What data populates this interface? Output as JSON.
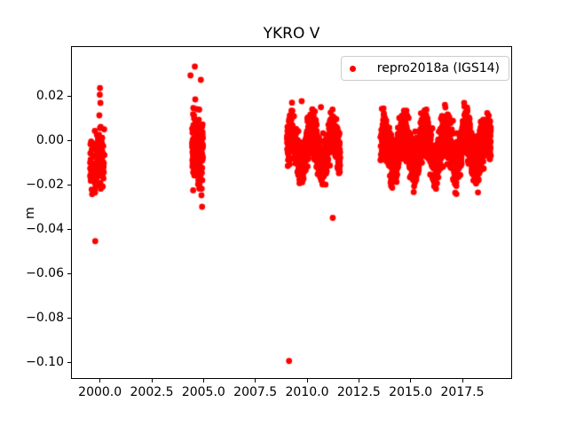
{
  "figure": {
    "background": "#ffffff"
  },
  "chart_data": {
    "type": "scatter",
    "title": "YKRO V",
    "xlabel": "",
    "ylabel": "m",
    "grid": false,
    "xlim": [
      1998.6,
      2019.9
    ],
    "ylim": [
      -0.1076,
      0.0424
    ],
    "xticks": [
      2000.0,
      2002.5,
      2005.0,
      2007.5,
      2010.0,
      2012.5,
      2015.0,
      2017.5
    ],
    "xtick_labels": [
      "2000.0",
      "2002.5",
      "2005.0",
      "2007.5",
      "2010.0",
      "2012.5",
      "2015.0",
      "2017.5"
    ],
    "yticks": [
      0.02,
      0.0,
      -0.02,
      -0.04,
      -0.06,
      -0.08,
      -0.1
    ],
    "ytick_labels": [
      "0.02",
      "0.00",
      "−0.02",
      "−0.04",
      "−0.06",
      "−0.08",
      "−0.10"
    ],
    "legend": {
      "position": "upper-right",
      "entries": [
        {
          "label": "repro2018a (IGS14)",
          "color": "#ff0000",
          "marker": "circle"
        }
      ]
    },
    "series_color": "#ff0000",
    "marker_radius_px": 3.4,
    "data_segments": [
      {
        "name": "cluster-1999-2000",
        "x_start": 1999.52,
        "x_end": 2000.22,
        "n": 120,
        "mean": -0.011,
        "annual_amplitude": 0.002,
        "annual_phase": 0.25,
        "sigma": 0.008,
        "y_min": -0.028,
        "y_max": 0.006
      },
      {
        "name": "cluster-2004",
        "x_start": 2004.45,
        "x_end": 2004.97,
        "n": 160,
        "mean": -0.004,
        "annual_amplitude": 0.002,
        "annual_phase": 0.25,
        "sigma": 0.009,
        "y_min": -0.0238,
        "y_max": 0.0153
      },
      {
        "name": "band-2009-2011",
        "x_start": 2009.03,
        "x_end": 2011.6,
        "n": 950,
        "mean": -0.0035,
        "annual_amplitude": 0.0075,
        "annual_phase": 0.22,
        "sigma": 0.0045,
        "y_min": -0.0255,
        "y_max": 0.0172
      },
      {
        "name": "band-2013-2018",
        "x_start": 2013.55,
        "x_end": 2018.87,
        "n": 1900,
        "mean": -0.0035,
        "annual_amplitude": 0.007,
        "annual_phase": 0.68,
        "sigma": 0.005,
        "y_min": -0.0245,
        "y_max": 0.017
      }
    ],
    "outlier_points": [
      [
        2000.0,
        0.0235
      ],
      [
        1999.99,
        0.0205
      ],
      [
        2000.02,
        0.0168
      ],
      [
        1999.97,
        0.0112
      ],
      [
        2000.0,
        0.0055
      ],
      [
        1999.77,
        -0.0455
      ],
      [
        2004.58,
        0.0332
      ],
      [
        2004.37,
        0.0292
      ],
      [
        2004.87,
        0.0272
      ],
      [
        2004.6,
        0.0184
      ],
      [
        2004.9,
        -0.0248
      ],
      [
        2004.93,
        -0.03
      ],
      [
        2009.13,
        -0.0995
      ],
      [
        2009.74,
        0.0176
      ],
      [
        2010.67,
        0.0149
      ],
      [
        2011.24,
        -0.035
      ]
    ]
  }
}
